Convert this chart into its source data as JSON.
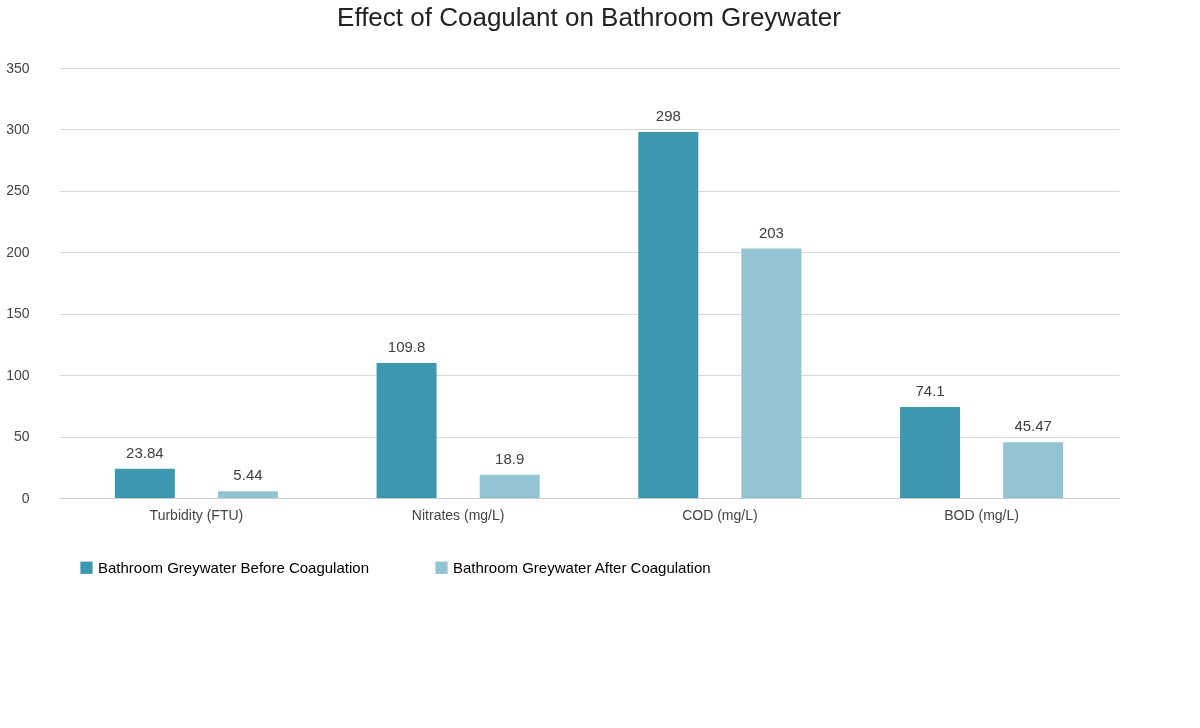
{
  "chart_data": {
    "type": "bar",
    "title": "Effect of Coagulant on Bathroom Greywater",
    "categories": [
      "Turbidity (FTU)",
      "Nitrates (mg/L)",
      "COD (mg/L)",
      "BOD (mg/L)"
    ],
    "series": [
      {
        "name": "Bathroom Greywater  Before Coagulation",
        "color": "#3d97ae",
        "values": [
          23.84,
          109.8,
          298,
          74.1
        ]
      },
      {
        "name": "Bathroom Greywater  After Coagulation",
        "color": "#92c4d3",
        "values": [
          5.44,
          18.9,
          203,
          45.47
        ]
      }
    ],
    "ylim": [
      0,
      350
    ],
    "yticks": [
      0,
      50,
      100,
      150,
      200,
      250,
      300,
      350
    ],
    "grid": "y",
    "legend": "bottom",
    "data_labels": true
  }
}
